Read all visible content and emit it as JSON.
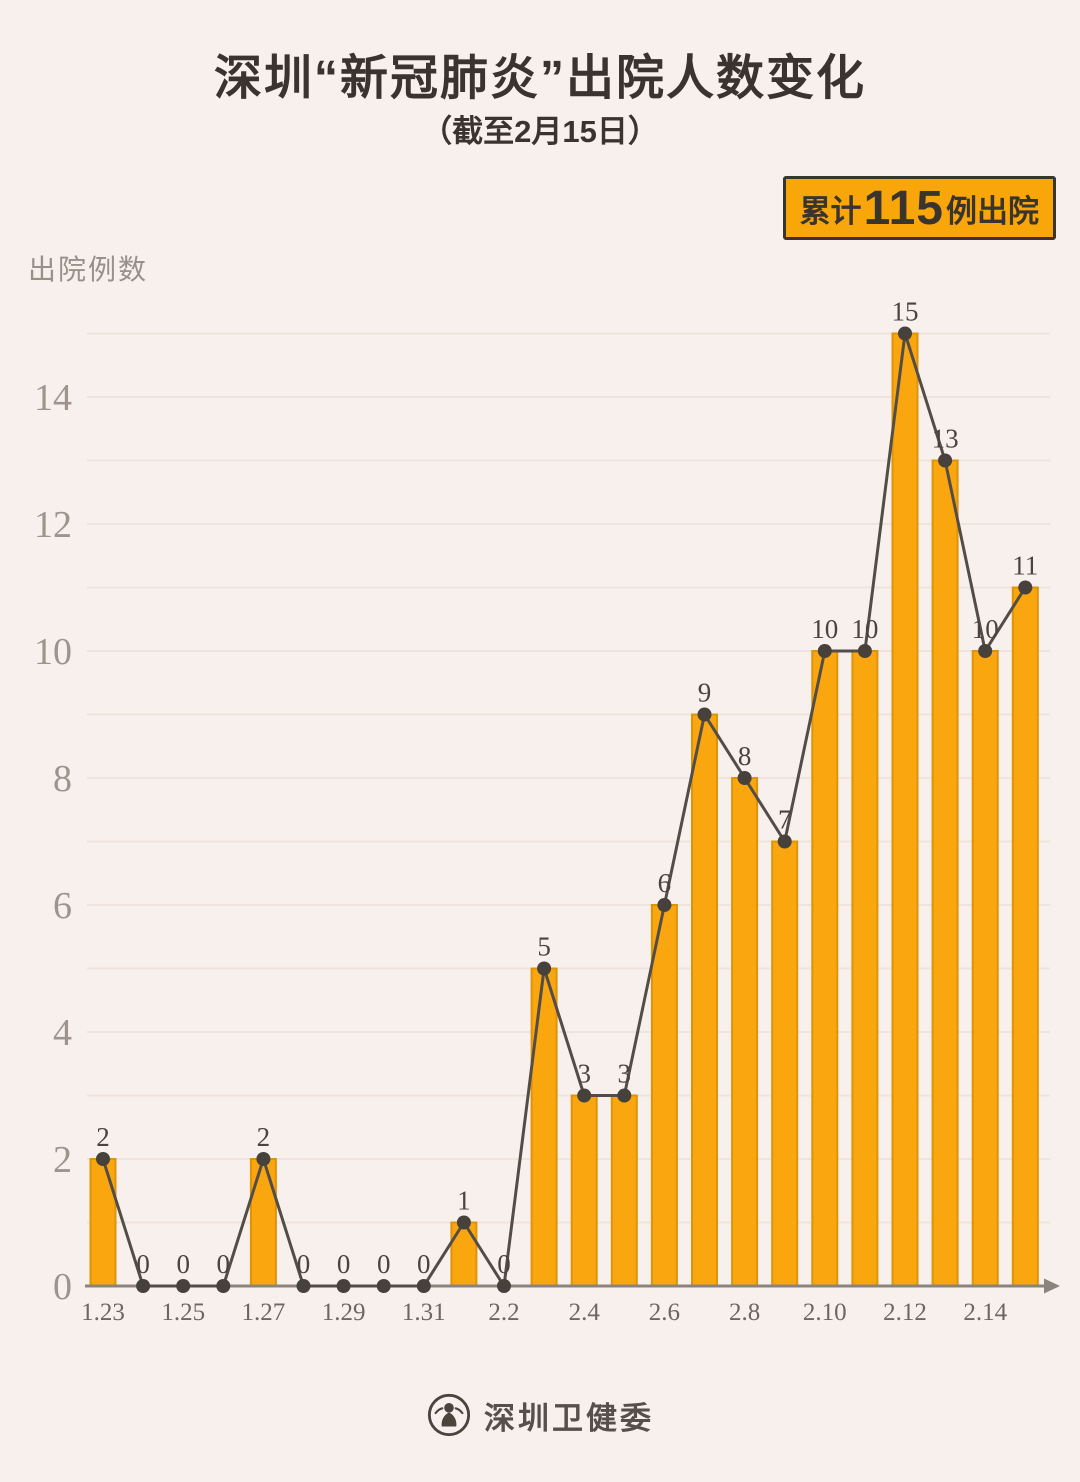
{
  "header": {
    "title": "深圳“新冠肺炎”出院人数变化",
    "subtitle": "（截至2月15日）"
  },
  "badge": {
    "prefix": "累计",
    "count": "115",
    "suffix": "例出院",
    "bg_color": "#F9A60A",
    "text_color": "#3A342E"
  },
  "y_axis_title": "出院例数",
  "footer": {
    "org_name": "深圳卫健委",
    "logo": "szhc-person-emblem-icon"
  },
  "colors": {
    "background": "#F8F0EC",
    "grid": "#EEE3DD",
    "bar_fill": "#FAA70F",
    "bar_border": "#DE9309",
    "line": "#534D47",
    "marker": "#46413B",
    "axis": "#8C837C",
    "y_tick_text": "#9E948D",
    "x_tick_text": "#6F665F",
    "data_label_text": "#4A443D"
  },
  "chart_data": {
    "type": "bar",
    "overlay": "line_with_markers",
    "title": "深圳“新冠肺炎”出院人数变化（截至2月15日）",
    "ylabel": "出院例数",
    "categories": [
      "1.23",
      "1.24",
      "1.25",
      "1.26",
      "1.27",
      "1.28",
      "1.29",
      "1.30",
      "1.31",
      "2.1",
      "2.2",
      "2.3",
      "2.4",
      "2.5",
      "2.6",
      "2.7",
      "2.8",
      "2.9",
      "2.10",
      "2.11",
      "2.12",
      "2.13",
      "2.14",
      "2.15"
    ],
    "values": [
      2,
      0,
      0,
      0,
      2,
      0,
      0,
      0,
      0,
      1,
      0,
      5,
      3,
      3,
      6,
      9,
      8,
      7,
      10,
      10,
      15,
      13,
      10,
      11
    ],
    "data_labels_shown": true,
    "x_tick_labels_shown": [
      "1.23",
      "1.25",
      "1.27",
      "1.29",
      "1.31",
      "2.2",
      "2.4",
      "2.6",
      "2.8",
      "2.10",
      "2.12",
      "2.14"
    ],
    "y_ticks": [
      0,
      2,
      4,
      6,
      8,
      10,
      12,
      14
    ],
    "ylim": [
      0,
      15
    ],
    "grid": "horizontal, every 1 unit",
    "legend": "none",
    "cumulative_total": 115
  }
}
